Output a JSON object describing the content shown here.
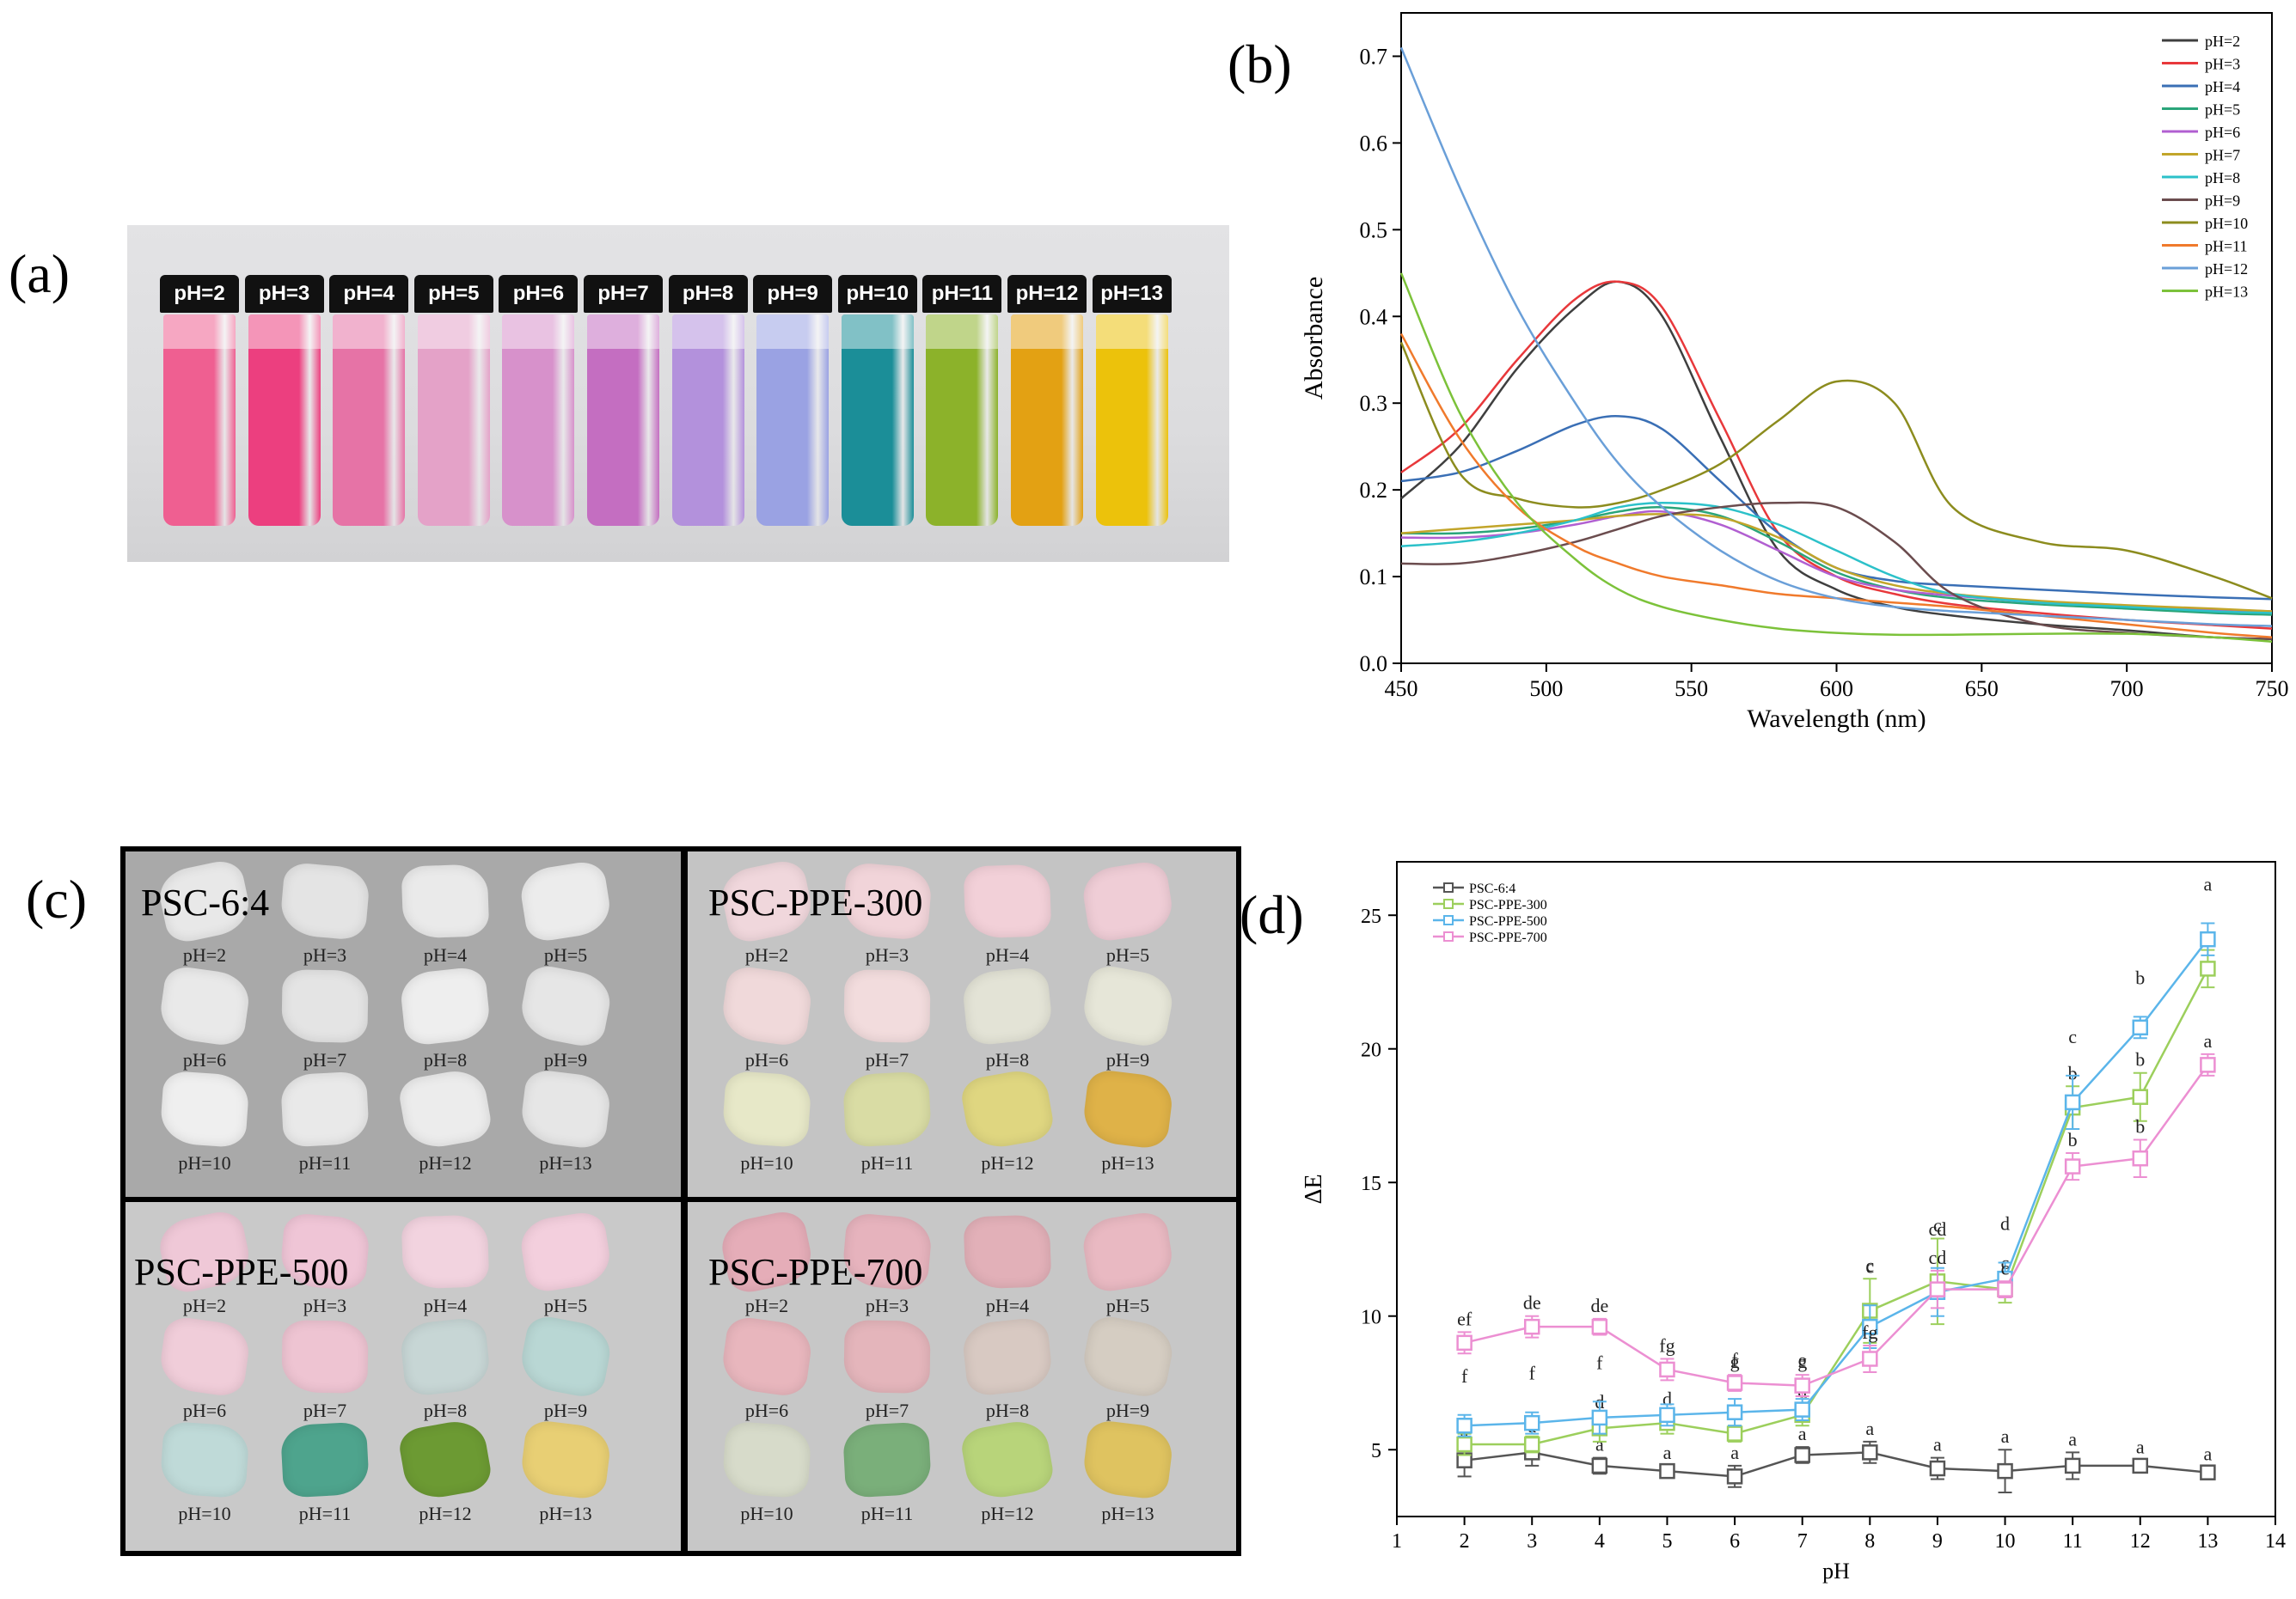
{
  "figure": {
    "panel_labels": [
      "(a)",
      "(b)",
      "(c)",
      "(d)"
    ]
  },
  "vials": {
    "labels": [
      "pH=2",
      "pH=3",
      "pH=4",
      "pH=5",
      "pH=6",
      "pH=7",
      "pH=8",
      "pH=9",
      "pH=10",
      "pH=11",
      "pH=12",
      "pH=13"
    ],
    "colors": [
      "#ef5f91",
      "#ec3f7f",
      "#e673a6",
      "#e4a2c8",
      "#d791cb",
      "#c46ec1",
      "#b391dc",
      "#9aa2e3",
      "#1b8e98",
      "#8cb22a",
      "#e3a113",
      "#ecc20b"
    ]
  },
  "films": {
    "panels": [
      {
        "title": "PSC-6:4",
        "background": "#a9a9a9",
        "labels": [
          "pH=2",
          "pH=3",
          "pH=4",
          "pH=5",
          "pH=6",
          "pH=7",
          "pH=8",
          "pH=9",
          "pH=10",
          "pH=11",
          "pH=12",
          "pH=13"
        ],
        "colors": [
          "#e8e8e8",
          "#e4e4e4",
          "#eaeaea",
          "#ececec",
          "#e9e9e9",
          "#e4e4e4",
          "#eeeeee",
          "#e6e6e6",
          "#efefef",
          "#e9e9e9",
          "#ececec",
          "#e6e6e6"
        ]
      },
      {
        "title": "PSC-PPE-300",
        "background": "#c4c4c4",
        "labels": [
          "pH=2",
          "pH=3",
          "pH=4",
          "pH=5",
          "pH=6",
          "pH=7",
          "pH=8",
          "pH=9",
          "pH=10",
          "pH=11",
          "pH=12",
          "pH=13"
        ],
        "colors": [
          "#f0d7dc",
          "#f1d4d9",
          "#f2d0d8",
          "#efcdd6",
          "#f0d9da",
          "#f2dcdd",
          "#e3e3d6",
          "#e6e6d8",
          "#e7e8c8",
          "#d9dca4",
          "#dfd680",
          "#dfb248"
        ]
      },
      {
        "title": "PSC-PPE-500",
        "background": "#c9c9c9",
        "labels": [
          "pH=2",
          "pH=3",
          "pH=4",
          "pH=5",
          "pH=6",
          "pH=7",
          "pH=8",
          "pH=9",
          "pH=10",
          "pH=11",
          "pH=12",
          "pH=13"
        ],
        "colors": [
          "#efc8d7",
          "#efc5d6",
          "#f2d3df",
          "#f3cfdd",
          "#f0cdd9",
          "#eec4d2",
          "#c7d6d5",
          "#b9d7d4",
          "#bfdad8",
          "#4ea48d",
          "#6c9a33",
          "#e8cf74"
        ]
      },
      {
        "title": "PSC-PPE-700",
        "background": "#c7c7c7",
        "labels": [
          "pH=2",
          "pH=3",
          "pH=4",
          "pH=5",
          "pH=6",
          "pH=7",
          "pH=8",
          "pH=9",
          "pH=10",
          "pH=11",
          "pH=12",
          "pH=13"
        ],
        "colors": [
          "#e5adb8",
          "#e6b3bd",
          "#e2b0b8",
          "#e9b9c2",
          "#e8b6bd",
          "#e4b5bb",
          "#d8c9c2",
          "#d5cdc2",
          "#d7dbca",
          "#7aaf7a",
          "#b8d47a",
          "#dfc360"
        ]
      }
    ]
  },
  "chart_data": [
    {
      "type": "line",
      "title": "",
      "xlabel": "Wavelength (nm)",
      "ylabel": "Absorbance",
      "xlim": [
        450,
        750
      ],
      "ylim": [
        0.0,
        0.75
      ],
      "x_ticks": [
        450,
        500,
        550,
        600,
        650,
        700,
        750
      ],
      "y_ticks": [
        0.0,
        0.1,
        0.2,
        0.3,
        0.4,
        0.5,
        0.6,
        0.7
      ],
      "legend_position": "top-right",
      "x": [
        450,
        470,
        490,
        510,
        525,
        540,
        560,
        580,
        600,
        620,
        640,
        670,
        700,
        730,
        750
      ],
      "series": [
        {
          "name": "pH=2",
          "color": "#3f3f3f",
          "values": [
            0.19,
            0.25,
            0.34,
            0.41,
            0.44,
            0.4,
            0.26,
            0.13,
            0.085,
            0.065,
            0.055,
            0.045,
            0.038,
            0.03,
            0.028
          ]
        },
        {
          "name": "pH=3",
          "color": "#e8383b",
          "values": [
            0.22,
            0.27,
            0.35,
            0.42,
            0.44,
            0.41,
            0.28,
            0.15,
            0.1,
            0.08,
            0.068,
            0.058,
            0.05,
            0.044,
            0.04
          ]
        },
        {
          "name": "pH=4",
          "color": "#3a6fb5",
          "values": [
            0.21,
            0.22,
            0.245,
            0.275,
            0.285,
            0.27,
            0.21,
            0.15,
            0.11,
            0.095,
            0.09,
            0.085,
            0.08,
            0.076,
            0.074
          ]
        },
        {
          "name": "pH=5",
          "color": "#2aa57a",
          "values": [
            0.15,
            0.15,
            0.155,
            0.165,
            0.175,
            0.18,
            0.17,
            0.14,
            0.105,
            0.085,
            0.075,
            0.068,
            0.063,
            0.058,
            0.056
          ]
        },
        {
          "name": "pH=6",
          "color": "#b15fd1",
          "values": [
            0.145,
            0.145,
            0.15,
            0.16,
            0.17,
            0.175,
            0.16,
            0.13,
            0.1,
            0.085,
            0.078,
            0.07,
            0.066,
            0.062,
            0.06
          ]
        },
        {
          "name": "pH=7",
          "color": "#c2a52a",
          "values": [
            0.15,
            0.155,
            0.16,
            0.165,
            0.17,
            0.172,
            0.168,
            0.145,
            0.11,
            0.09,
            0.08,
            0.072,
            0.067,
            0.063,
            0.06
          ]
        },
        {
          "name": "pH=8",
          "color": "#2cc1c9",
          "values": [
            0.135,
            0.14,
            0.15,
            0.165,
            0.18,
            0.185,
            0.18,
            0.16,
            0.13,
            0.1,
            0.08,
            0.07,
            0.065,
            0.06,
            0.058
          ]
        },
        {
          "name": "pH=9",
          "color": "#6b4c4e",
          "values": [
            0.115,
            0.115,
            0.125,
            0.14,
            0.155,
            0.17,
            0.18,
            0.185,
            0.18,
            0.14,
            0.08,
            0.045,
            0.035,
            0.03,
            0.028
          ]
        },
        {
          "name": "pH=10",
          "color": "#8c8c1e",
          "values": [
            0.37,
            0.22,
            0.19,
            0.18,
            0.185,
            0.2,
            0.23,
            0.28,
            0.325,
            0.3,
            0.18,
            0.14,
            0.13,
            0.1,
            0.075
          ]
        },
        {
          "name": "pH=11",
          "color": "#f07a2c",
          "values": [
            0.38,
            0.26,
            0.18,
            0.135,
            0.115,
            0.1,
            0.09,
            0.08,
            0.075,
            0.07,
            0.065,
            0.055,
            0.045,
            0.035,
            0.03
          ]
        },
        {
          "name": "pH=12",
          "color": "#6a9fd8",
          "values": [
            0.71,
            0.55,
            0.41,
            0.3,
            0.23,
            0.18,
            0.13,
            0.095,
            0.075,
            0.065,
            0.06,
            0.055,
            0.05,
            0.045,
            0.043
          ]
        },
        {
          "name": "pH=13",
          "color": "#7cc23a",
          "values": [
            0.45,
            0.29,
            0.185,
            0.12,
            0.085,
            0.065,
            0.05,
            0.04,
            0.035,
            0.033,
            0.033,
            0.034,
            0.034,
            0.03,
            0.025
          ]
        }
      ]
    },
    {
      "type": "line",
      "title": "",
      "xlabel": "pH",
      "ylabel": "ΔE",
      "xlim": [
        1,
        14
      ],
      "ylim": [
        2.5,
        27
      ],
      "x_ticks": [
        1,
        2,
        3,
        4,
        5,
        6,
        7,
        8,
        9,
        10,
        11,
        12,
        13,
        14
      ],
      "y_ticks": [
        5,
        10,
        15,
        20,
        25
      ],
      "legend_position": "top-left",
      "x": [
        2,
        3,
        4,
        5,
        6,
        7,
        8,
        9,
        10,
        11,
        12,
        13
      ],
      "series": [
        {
          "name": "PSC-6:4",
          "color": "#555555",
          "marker": "square",
          "values": [
            4.6,
            4.9,
            4.4,
            4.2,
            4.0,
            4.8,
            4.9,
            4.3,
            4.2,
            4.4,
            4.4,
            4.15
          ],
          "errors": [
            0.6,
            0.5,
            0.3,
            0.2,
            0.4,
            0.3,
            0.4,
            0.4,
            0.8,
            0.5,
            0.2,
            0.2
          ],
          "labels": [
            "a",
            "a",
            "a",
            "a",
            "a",
            "a",
            "a",
            "a",
            "a",
            "a",
            "a",
            "a"
          ]
        },
        {
          "name": "PSC-PPE-300",
          "color": "#9ccf5c",
          "marker": "square",
          "values": [
            5.2,
            5.2,
            5.8,
            6.0,
            5.6,
            6.3,
            10.2,
            11.3,
            11.0,
            17.8,
            18.2,
            23.0
          ],
          "errors": [
            0.4,
            0.3,
            0.5,
            0.4,
            0.3,
            0.4,
            1.2,
            1.6,
            0.5,
            0.8,
            0.9,
            0.7
          ],
          "labels": [
            "e",
            "e",
            "d",
            "d",
            "d",
            "d",
            "c",
            "c",
            "c",
            "b",
            "b",
            "a"
          ]
        },
        {
          "name": "PSC-PPE-500",
          "color": "#5bb5ea",
          "marker": "square",
          "values": [
            5.9,
            6.0,
            6.2,
            6.3,
            6.4,
            6.5,
            9.6,
            10.9,
            11.4,
            18.0,
            20.8,
            24.1
          ],
          "errors": [
            0.4,
            0.4,
            0.6,
            0.4,
            0.5,
            0.4,
            0.8,
            0.9,
            0.6,
            1.0,
            0.4,
            0.6
          ],
          "labels": [
            "f",
            "f",
            "f",
            "e",
            "f",
            "e",
            "c",
            "cd",
            "d",
            "c",
            "b",
            "a"
          ]
        },
        {
          "name": "PSC-PPE-700",
          "color": "#ec8fd2",
          "marker": "square",
          "values": [
            9.0,
            9.6,
            9.6,
            8.0,
            7.5,
            7.4,
            8.4,
            11.0,
            11.0,
            15.6,
            15.9,
            19.4
          ],
          "errors": [
            0.4,
            0.4,
            0.3,
            0.4,
            0.3,
            0.4,
            0.5,
            0.7,
            0.3,
            0.5,
            0.7,
            0.4
          ],
          "labels": [
            "ef",
            "de",
            "de",
            "fg",
            "g",
            "g",
            "fg",
            "cd",
            "c",
            "b",
            "b",
            "a"
          ]
        }
      ]
    }
  ]
}
